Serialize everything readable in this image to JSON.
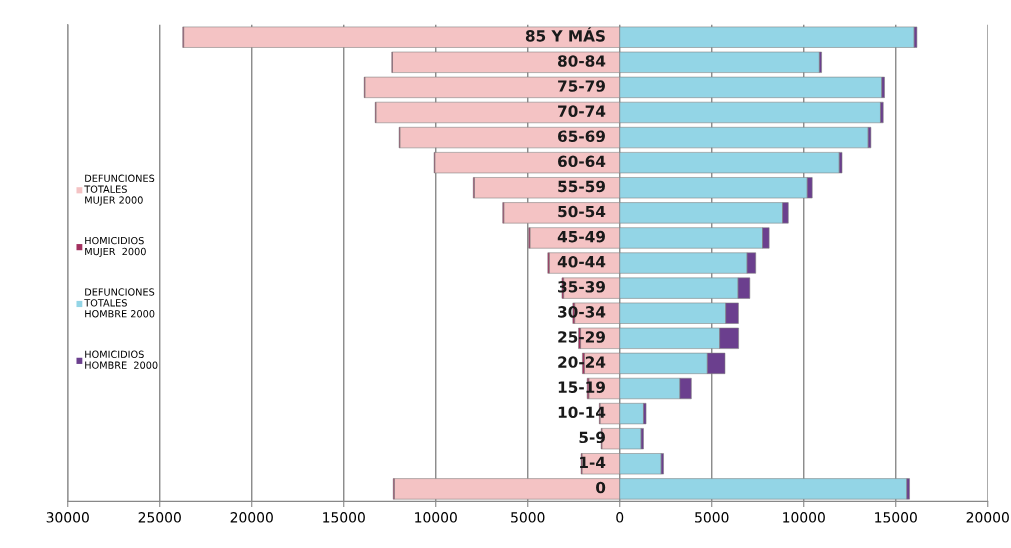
{
  "chart_data": {
    "type": "bar",
    "orientation": "horizontal",
    "stacked": true,
    "categories": [
      "85 Y MÁS",
      "80-84",
      "75-79",
      "70-74",
      "65-69",
      "60-64",
      "55-59",
      "50-54",
      "45-49",
      "40-44",
      "35-39",
      "30-34",
      "25-29",
      "20-24",
      "15-19",
      "10-14",
      "5-9",
      "1-4",
      "0"
    ],
    "series": [
      {
        "name": "DEFUNCIONES\nTOTALES\nMUJER 2000",
        "color": "#f4c3c4",
        "values": [
          -23700,
          -12350,
          -13850,
          -13250,
          -11950,
          -10050,
          -7900,
          -6300,
          -4880,
          -3830,
          -3050,
          -2450,
          -2130,
          -1920,
          -1680,
          -1070,
          -970,
          -2050,
          -12250
        ]
      },
      {
        "name": "HOMICIDIOS\nMUJER  2000",
        "color": "#a3305f",
        "values": [
          -50,
          -40,
          -40,
          -40,
          -40,
          -40,
          -60,
          -60,
          -70,
          -80,
          -90,
          -100,
          -110,
          -110,
          -90,
          -40,
          -40,
          -50,
          -60
        ]
      },
      {
        "name": "DEFUNCIONES\nTOTALES\nHOMBRE 2000",
        "color": "#93d5e6",
        "values": [
          16000,
          10850,
          14240,
          14170,
          13500,
          11930,
          10190,
          8850,
          7760,
          6920,
          6430,
          5760,
          5430,
          4760,
          3270,
          1290,
          1160,
          2250,
          15600
        ]
      },
      {
        "name": "HOMICIDIOS\nHOMBRE  2000",
        "color": "#6b3f8e",
        "values": [
          150,
          120,
          150,
          150,
          150,
          150,
          270,
          310,
          360,
          470,
          640,
          690,
          1030,
          960,
          620,
          140,
          130,
          130,
          150
        ]
      }
    ],
    "xlim": [
      -30000,
      20000
    ],
    "xticks": [
      {
        "value": -30000,
        "label": "30000"
      },
      {
        "value": -25000,
        "label": "25000"
      },
      {
        "value": -20000,
        "label": "20000"
      },
      {
        "value": -15000,
        "label": "15000"
      },
      {
        "value": -10000,
        "label": "10000"
      },
      {
        "value": -5000,
        "label": "5000"
      },
      0,
      5000,
      10000,
      15000,
      20000
    ],
    "grid": "x",
    "legend": "left"
  }
}
